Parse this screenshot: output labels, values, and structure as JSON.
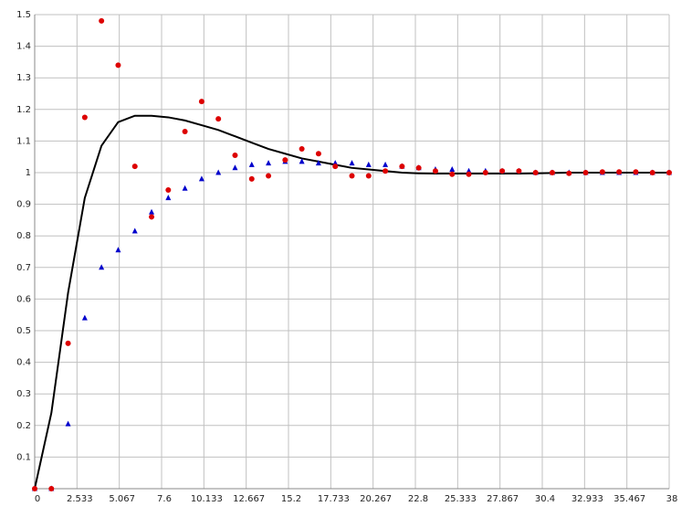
{
  "chart_data": {
    "type": "scatter",
    "x": [
      0,
      1,
      2,
      3,
      4,
      5,
      6,
      7,
      8,
      9,
      10,
      11,
      12,
      13,
      14,
      15,
      16,
      17,
      18,
      19,
      20,
      21,
      22,
      23,
      24,
      25,
      26,
      27,
      28,
      29,
      30,
      31,
      32,
      33,
      34,
      35,
      36,
      37,
      38
    ],
    "series": [
      {
        "color": "#000000",
        "marker": "line",
        "values": [
          0,
          0.24,
          0.62,
          0.92,
          1.085,
          1.16,
          1.18,
          1.18,
          1.175,
          1.165,
          1.15,
          1.135,
          1.115,
          1.095,
          1.075,
          1.06,
          1.045,
          1.035,
          1.025,
          1.015,
          1.01,
          1.005,
          1.0,
          0.998,
          0.997,
          0.997,
          0.997,
          0.997,
          0.997,
          0.997,
          0.998,
          0.999,
          1.0,
          1.0,
          1.0,
          1.0,
          1.0,
          1.0,
          1.0
        ]
      },
      {
        "color": "#0000cc",
        "marker": "triangle",
        "values": [
          0,
          0,
          0.205,
          0.54,
          0.7,
          0.755,
          0.815,
          0.875,
          0.92,
          0.95,
          0.98,
          1.0,
          1.015,
          1.025,
          1.03,
          1.035,
          1.035,
          1.03,
          1.03,
          1.03,
          1.025,
          1.025,
          1.02,
          1.015,
          1.01,
          1.01,
          1.005,
          1.005,
          1.005,
          1.005,
          1.0,
          1.0,
          1.0,
          1.0,
          1.0,
          1.0,
          1.0,
          1.0,
          1.0
        ]
      },
      {
        "color": "#dd0000",
        "marker": "circle",
        "values": [
          0,
          0,
          0.46,
          1.175,
          1.48,
          1.34,
          1.02,
          0.86,
          0.945,
          1.13,
          1.225,
          1.17,
          1.055,
          0.98,
          0.99,
          1.04,
          1.075,
          1.06,
          1.02,
          0.99,
          0.99,
          1.005,
          1.02,
          1.015,
          1.005,
          0.995,
          0.995,
          1.0,
          1.005,
          1.005,
          1.0,
          1.0,
          0.998,
          1.0,
          1.002,
          1.002,
          1.002,
          1.0,
          1.0
        ]
      }
    ],
    "xlim": [
      0,
      38
    ],
    "xticks": [
      0,
      2.533,
      5.067,
      7.6,
      10.133,
      12.667,
      15.2,
      17.733,
      20.267,
      22.8,
      25.333,
      27.867,
      30.4,
      32.933,
      35.467,
      38
    ],
    "ylim": [
      0,
      1.5
    ],
    "yticks": [
      0.1,
      0.2,
      0.3,
      0.4,
      0.5,
      0.6,
      0.7,
      0.8,
      0.9,
      1,
      1.1,
      1.2,
      1.3,
      1.4,
      1.5
    ],
    "grid": true
  }
}
